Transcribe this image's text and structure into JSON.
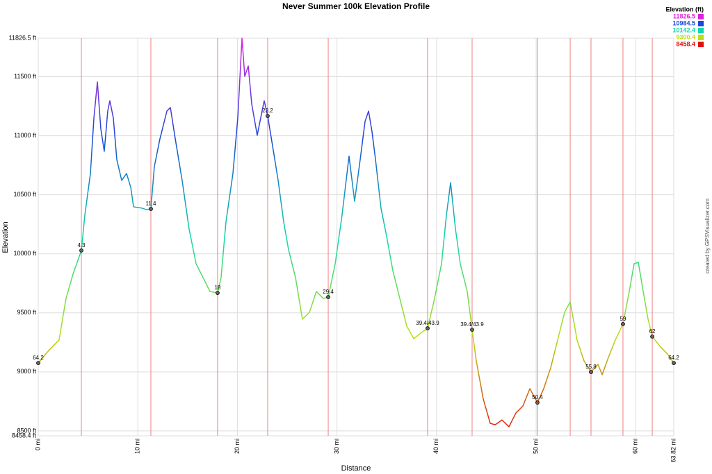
{
  "chart_data": {
    "type": "line",
    "title": "Never Summer 100k Elevation Profile",
    "x_label": "Distance",
    "y_label": "Elevation",
    "credit": "created by GPSVisualizer.com",
    "legend_title": "Elevation (ft)",
    "legend": [
      {
        "value": 11826.5,
        "color": "#e020e0"
      },
      {
        "value": 10984.5,
        "color": "#1848d8"
      },
      {
        "value": 10142.4,
        "color": "#10d8a8"
      },
      {
        "value": 9300.4,
        "color": "#b8e010"
      },
      {
        "value": 8458.4,
        "color": "#e01010"
      }
    ],
    "grid": true,
    "xlim": [
      0,
      63.82
    ],
    "ylim": [
      8458.4,
      11826.5
    ],
    "xticks": [
      {
        "value": 0,
        "label": "0 mi"
      },
      {
        "value": 10,
        "label": "10 mi"
      },
      {
        "value": 20,
        "label": "20 mi"
      },
      {
        "value": 30,
        "label": "30 mi"
      },
      {
        "value": 40,
        "label": "40 mi"
      },
      {
        "value": 50,
        "label": "50 mi"
      },
      {
        "value": 60,
        "label": "60 mi"
      },
      {
        "value": 63.82,
        "label": "63.82 mi"
      }
    ],
    "yticks": [
      {
        "value": 8458.4,
        "label": "8458.4 ft"
      },
      {
        "value": 8500,
        "label": "8500 ft"
      },
      {
        "value": 9000,
        "label": "9000 ft"
      },
      {
        "value": 9500,
        "label": "9500 ft"
      },
      {
        "value": 10000,
        "label": "10000 ft"
      },
      {
        "value": 10500,
        "label": "10500 ft"
      },
      {
        "value": 11000,
        "label": "11000 ft"
      },
      {
        "value": 11500,
        "label": "11500 ft"
      },
      {
        "value": 11826.5,
        "label": "11826.5 ft"
      }
    ],
    "x": [
      0,
      1.05,
      2.09,
      2.79,
      3.49,
      4.33,
      4.68,
      5.24,
      5.59,
      5.94,
      6.28,
      6.63,
      6.98,
      7.19,
      7.54,
      7.89,
      8.38,
      8.87,
      9.29,
      9.57,
      10.47,
      10.82,
      11.31,
      11.66,
      12.22,
      12.92,
      13.27,
      13.76,
      14.45,
      15.15,
      15.85,
      16.55,
      17.25,
      18.01,
      18.36,
      18.85,
      19.55,
      20.04,
      20.46,
      20.74,
      21.09,
      21.44,
      21.99,
      22.34,
      22.69,
      23.04,
      23.53,
      24.09,
      24.65,
      25.14,
      25.84,
      26.53,
      27.23,
      27.93,
      28.63,
      29.12,
      29.82,
      30.51,
      31.21,
      31.77,
      32.33,
      32.82,
      33.17,
      33.52,
      33.87,
      34.42,
      34.98,
      35.61,
      36.31,
      37.01,
      37.71,
      38.4,
      39.1,
      39.8,
      40.5,
      40.99,
      41.41,
      41.9,
      42.38,
      43.08,
      43.57,
      43.99,
      44.69,
      45.39,
      45.88,
      46.57,
      47.27,
      47.97,
      48.67,
      49.37,
      50.13,
      50.76,
      51.46,
      52.16,
      52.86,
      53.42,
      54.11,
      54.81,
      55.51,
      56.21,
      56.63,
      57.26,
      57.95,
      58.72,
      59.35,
      59.84,
      60.26,
      60.75,
      61.24,
      61.66,
      62.49,
      63.19,
      63.82
    ],
    "values": [
      9075,
      9181,
      9270,
      9622,
      9828,
      10028,
      10328,
      10680,
      11151,
      11456,
      11062,
      10868,
      11209,
      11297,
      11151,
      10798,
      10622,
      10680,
      10563,
      10398,
      10386,
      10375,
      10380,
      10739,
      10974,
      11209,
      11239,
      10974,
      10622,
      10210,
      9916,
      9798,
      9681,
      9669,
      9798,
      10269,
      10680,
      11151,
      11826,
      11503,
      11591,
      11268,
      11004,
      11151,
      11297,
      11168,
      10915,
      10622,
      10269,
      10033,
      9798,
      9446,
      9504,
      9681,
      9622,
      9634,
      9916,
      10328,
      10827,
      10445,
      10798,
      11121,
      11209,
      11033,
      10798,
      10386,
      10151,
      9857,
      9622,
      9387,
      9281,
      9328,
      9369,
      9622,
      9916,
      10328,
      10603,
      10210,
      9916,
      9681,
      9357,
      9093,
      8770,
      8564,
      8552,
      8593,
      8535,
      8652,
      8711,
      8858,
      8740,
      8858,
      9034,
      9270,
      9505,
      9593,
      9270,
      9093,
      8999,
      9064,
      8976,
      9123,
      9270,
      9405,
      9681,
      9916,
      9928,
      9681,
      9446,
      9299,
      9211,
      9152,
      9075
    ],
    "aid_station_lines": [
      4.33,
      11.31,
      18.01,
      23.04,
      29.12,
      39.1,
      43.57,
      50.13,
      53.42,
      55.51,
      58.72,
      61.66
    ],
    "waypoints": [
      {
        "x": 0,
        "y": 9075,
        "label": "64.2"
      },
      {
        "x": 4.33,
        "y": 10028,
        "label": "4.3"
      },
      {
        "x": 11.31,
        "y": 10380,
        "label": "11.4"
      },
      {
        "x": 18.01,
        "y": 9669,
        "label": "18"
      },
      {
        "x": 23.04,
        "y": 11168,
        "label": "23.2"
      },
      {
        "x": 29.12,
        "y": 9634,
        "label": "29.4"
      },
      {
        "x": 39.1,
        "y": 9369,
        "label": "39.4/43.9"
      },
      {
        "x": 43.57,
        "y": 9357,
        "label": "39.4/43.9"
      },
      {
        "x": 50.13,
        "y": 8740,
        "label": "50.4"
      },
      {
        "x": 55.51,
        "y": 8999,
        "label": "55.8"
      },
      {
        "x": 58.72,
        "y": 9405,
        "label": "59"
      },
      {
        "x": 61.66,
        "y": 9299,
        "label": "62"
      },
      {
        "x": 63.82,
        "y": 9075,
        "label": "64.2"
      }
    ]
  }
}
